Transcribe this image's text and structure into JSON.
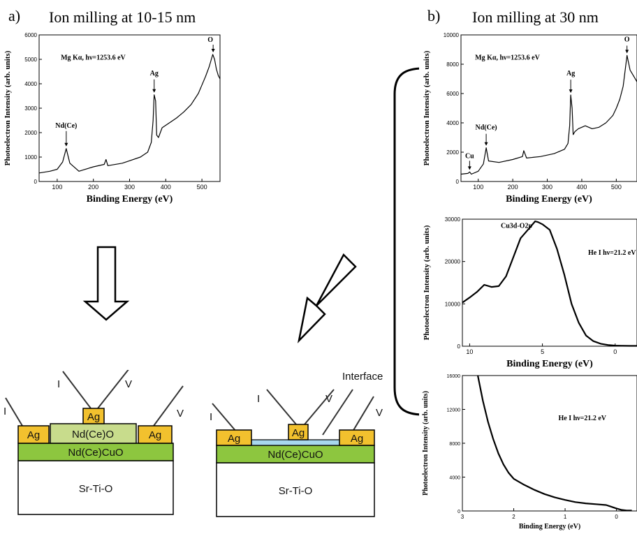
{
  "panels": {
    "a_label": "a)",
    "a_title": "Ion milling at 10-15 nm",
    "b_label": "b)",
    "b_title": "Ion milling at 30 nm"
  },
  "chart_data": [
    {
      "id": "a-xps",
      "type": "line",
      "title": "",
      "xlabel": "Binding Energy (eV)",
      "ylabel": "Photoelectron Intensity (arb. units)",
      "xlim": [
        50,
        550
      ],
      "ylim": [
        0,
        6000
      ],
      "xticks": [
        100,
        200,
        300,
        400,
        500
      ],
      "yticks": [
        0,
        1000,
        2000,
        3000,
        4000,
        5000,
        6000
      ],
      "annotation": "Mg Kα, hν=1253.6 eV",
      "peaks": [
        {
          "label": "Nd(Ce)",
          "x": 125,
          "y": 1350
        },
        {
          "label": "Ag",
          "x": 368,
          "y": 3550
        },
        {
          "label": "O",
          "x": 531,
          "y": 5200
        }
      ],
      "series": [
        {
          "x": [
            50,
            80,
            100,
            115,
            125,
            135,
            160,
            200,
            230,
            235,
            240,
            280,
            300,
            330,
            350,
            360,
            365,
            368,
            372,
            375,
            380,
            390,
            410,
            430,
            450,
            470,
            490,
            500,
            510,
            520,
            530,
            535,
            540,
            545,
            550
          ],
          "y": [
            350,
            420,
            500,
            800,
            1350,
            750,
            420,
            600,
            700,
            900,
            650,
            750,
            850,
            1000,
            1200,
            1600,
            2500,
            3550,
            3300,
            1900,
            1800,
            2200,
            2400,
            2600,
            2850,
            3150,
            3600,
            3950,
            4300,
            4700,
            5200,
            5000,
            4600,
            4350,
            4200
          ]
        }
      ]
    },
    {
      "id": "b-xps",
      "type": "line",
      "title": "",
      "xlabel": "Binding Energy (eV)",
      "ylabel": "Photoelectron Intensity (arb. units)",
      "xlim": [
        50,
        560
      ],
      "ylim": [
        0,
        10000
      ],
      "xticks": [
        100,
        200,
        300,
        400,
        500
      ],
      "yticks": [
        0,
        2000,
        4000,
        6000,
        8000,
        10000
      ],
      "annotation": "Mg Kα, hν=1253.6 eV",
      "peaks": [
        {
          "label": "Cu",
          "x": 75,
          "y": 650
        },
        {
          "label": "Nd(Ce)",
          "x": 123,
          "y": 2300
        },
        {
          "label": "Ag",
          "x": 368,
          "y": 5900
        },
        {
          "label": "O",
          "x": 531,
          "y": 8600
        }
      ],
      "series": [
        {
          "x": [
            50,
            70,
            75,
            80,
            100,
            115,
            123,
            130,
            160,
            200,
            228,
            232,
            240,
            280,
            320,
            350,
            360,
            365,
            368,
            372,
            375,
            380,
            390,
            410,
            430,
            450,
            470,
            490,
            500,
            510,
            520,
            531,
            540,
            550,
            560
          ],
          "y": [
            500,
            550,
            650,
            500,
            700,
            1200,
            2300,
            1400,
            1300,
            1500,
            1700,
            2100,
            1600,
            1700,
            1900,
            2200,
            2600,
            3800,
            5900,
            5000,
            3200,
            3400,
            3600,
            3800,
            3600,
            3700,
            4000,
            4500,
            5000,
            5600,
            6500,
            8600,
            7600,
            7200,
            6800
          ]
        }
      ]
    },
    {
      "id": "b-ups1",
      "type": "line",
      "title": "",
      "xlabel": "Binding Energy (eV)",
      "ylabel": "Photoelectron Intensity (arb. units)",
      "xlim": [
        10.5,
        -1.5
      ],
      "ylim": [
        0,
        30000
      ],
      "xticks": [
        10,
        5,
        0
      ],
      "yticks": [
        0,
        10000,
        20000,
        30000
      ],
      "annotation": "He I  hν=21.2 eV",
      "peak_label": "Cu3d-O2p",
      "series": [
        {
          "x": [
            10.5,
            10,
            9.5,
            9,
            8.5,
            8,
            7.5,
            7,
            6.5,
            6,
            5.5,
            5.3,
            5,
            4.5,
            4,
            3.5,
            3,
            2.5,
            2,
            1.5,
            1,
            0.5,
            0,
            -0.5,
            -1,
            -1.5
          ],
          "y": [
            10300,
            11500,
            12800,
            14500,
            14000,
            14200,
            16500,
            21000,
            25500,
            27500,
            29500,
            29300,
            28800,
            27500,
            23000,
            17000,
            10000,
            5500,
            2500,
            1200,
            600,
            300,
            150,
            100,
            80,
            80
          ]
        }
      ]
    },
    {
      "id": "b-ups2",
      "type": "line",
      "title": "",
      "xlabel": "Binding Energy (eV)",
      "ylabel": "Photoelectron Intensity (arb. units)",
      "xlim": [
        3,
        -0.4
      ],
      "ylim": [
        0,
        16000
      ],
      "xticks": [
        3,
        2,
        1,
        0
      ],
      "yticks": [
        0,
        4000,
        8000,
        12000,
        16000
      ],
      "annotation": "He I  hν=21.2 eV",
      "series": [
        {
          "x": [
            2.7,
            2.6,
            2.5,
            2.4,
            2.3,
            2.2,
            2.1,
            2.0,
            1.8,
            1.6,
            1.4,
            1.2,
            1.0,
            0.8,
            0.6,
            0.4,
            0.2,
            0.1,
            0.0,
            -0.1,
            -0.2,
            -0.3
          ],
          "y": [
            16000,
            13000,
            10500,
            8500,
            6800,
            5500,
            4500,
            3800,
            3100,
            2500,
            2000,
            1600,
            1300,
            1050,
            900,
            800,
            700,
            500,
            300,
            120,
            60,
            50
          ]
        }
      ]
    }
  ],
  "arrows": {
    "down": "down-arrow",
    "diagonal": "diagonal-arrow"
  },
  "diagram_left": {
    "substrate": "Sr-Ti-O",
    "film": "Nd(Ce)CuO",
    "layer": "Nd(Ce)O",
    "contact": "Ag",
    "probe_labels": [
      "I",
      "I",
      "V",
      "V"
    ]
  },
  "diagram_right": {
    "substrate": "Sr-Ti-O",
    "film": "Nd(Ce)CuO",
    "contact": "Ag",
    "interface_label": "Interface",
    "probe_labels": [
      "I",
      "I",
      "V",
      "V"
    ]
  },
  "colors": {
    "ag": "#f2c12e",
    "film": "#8dc63f",
    "oxide": "#c8dc8c",
    "interface": "#a8d8ee",
    "line": "#000000"
  }
}
